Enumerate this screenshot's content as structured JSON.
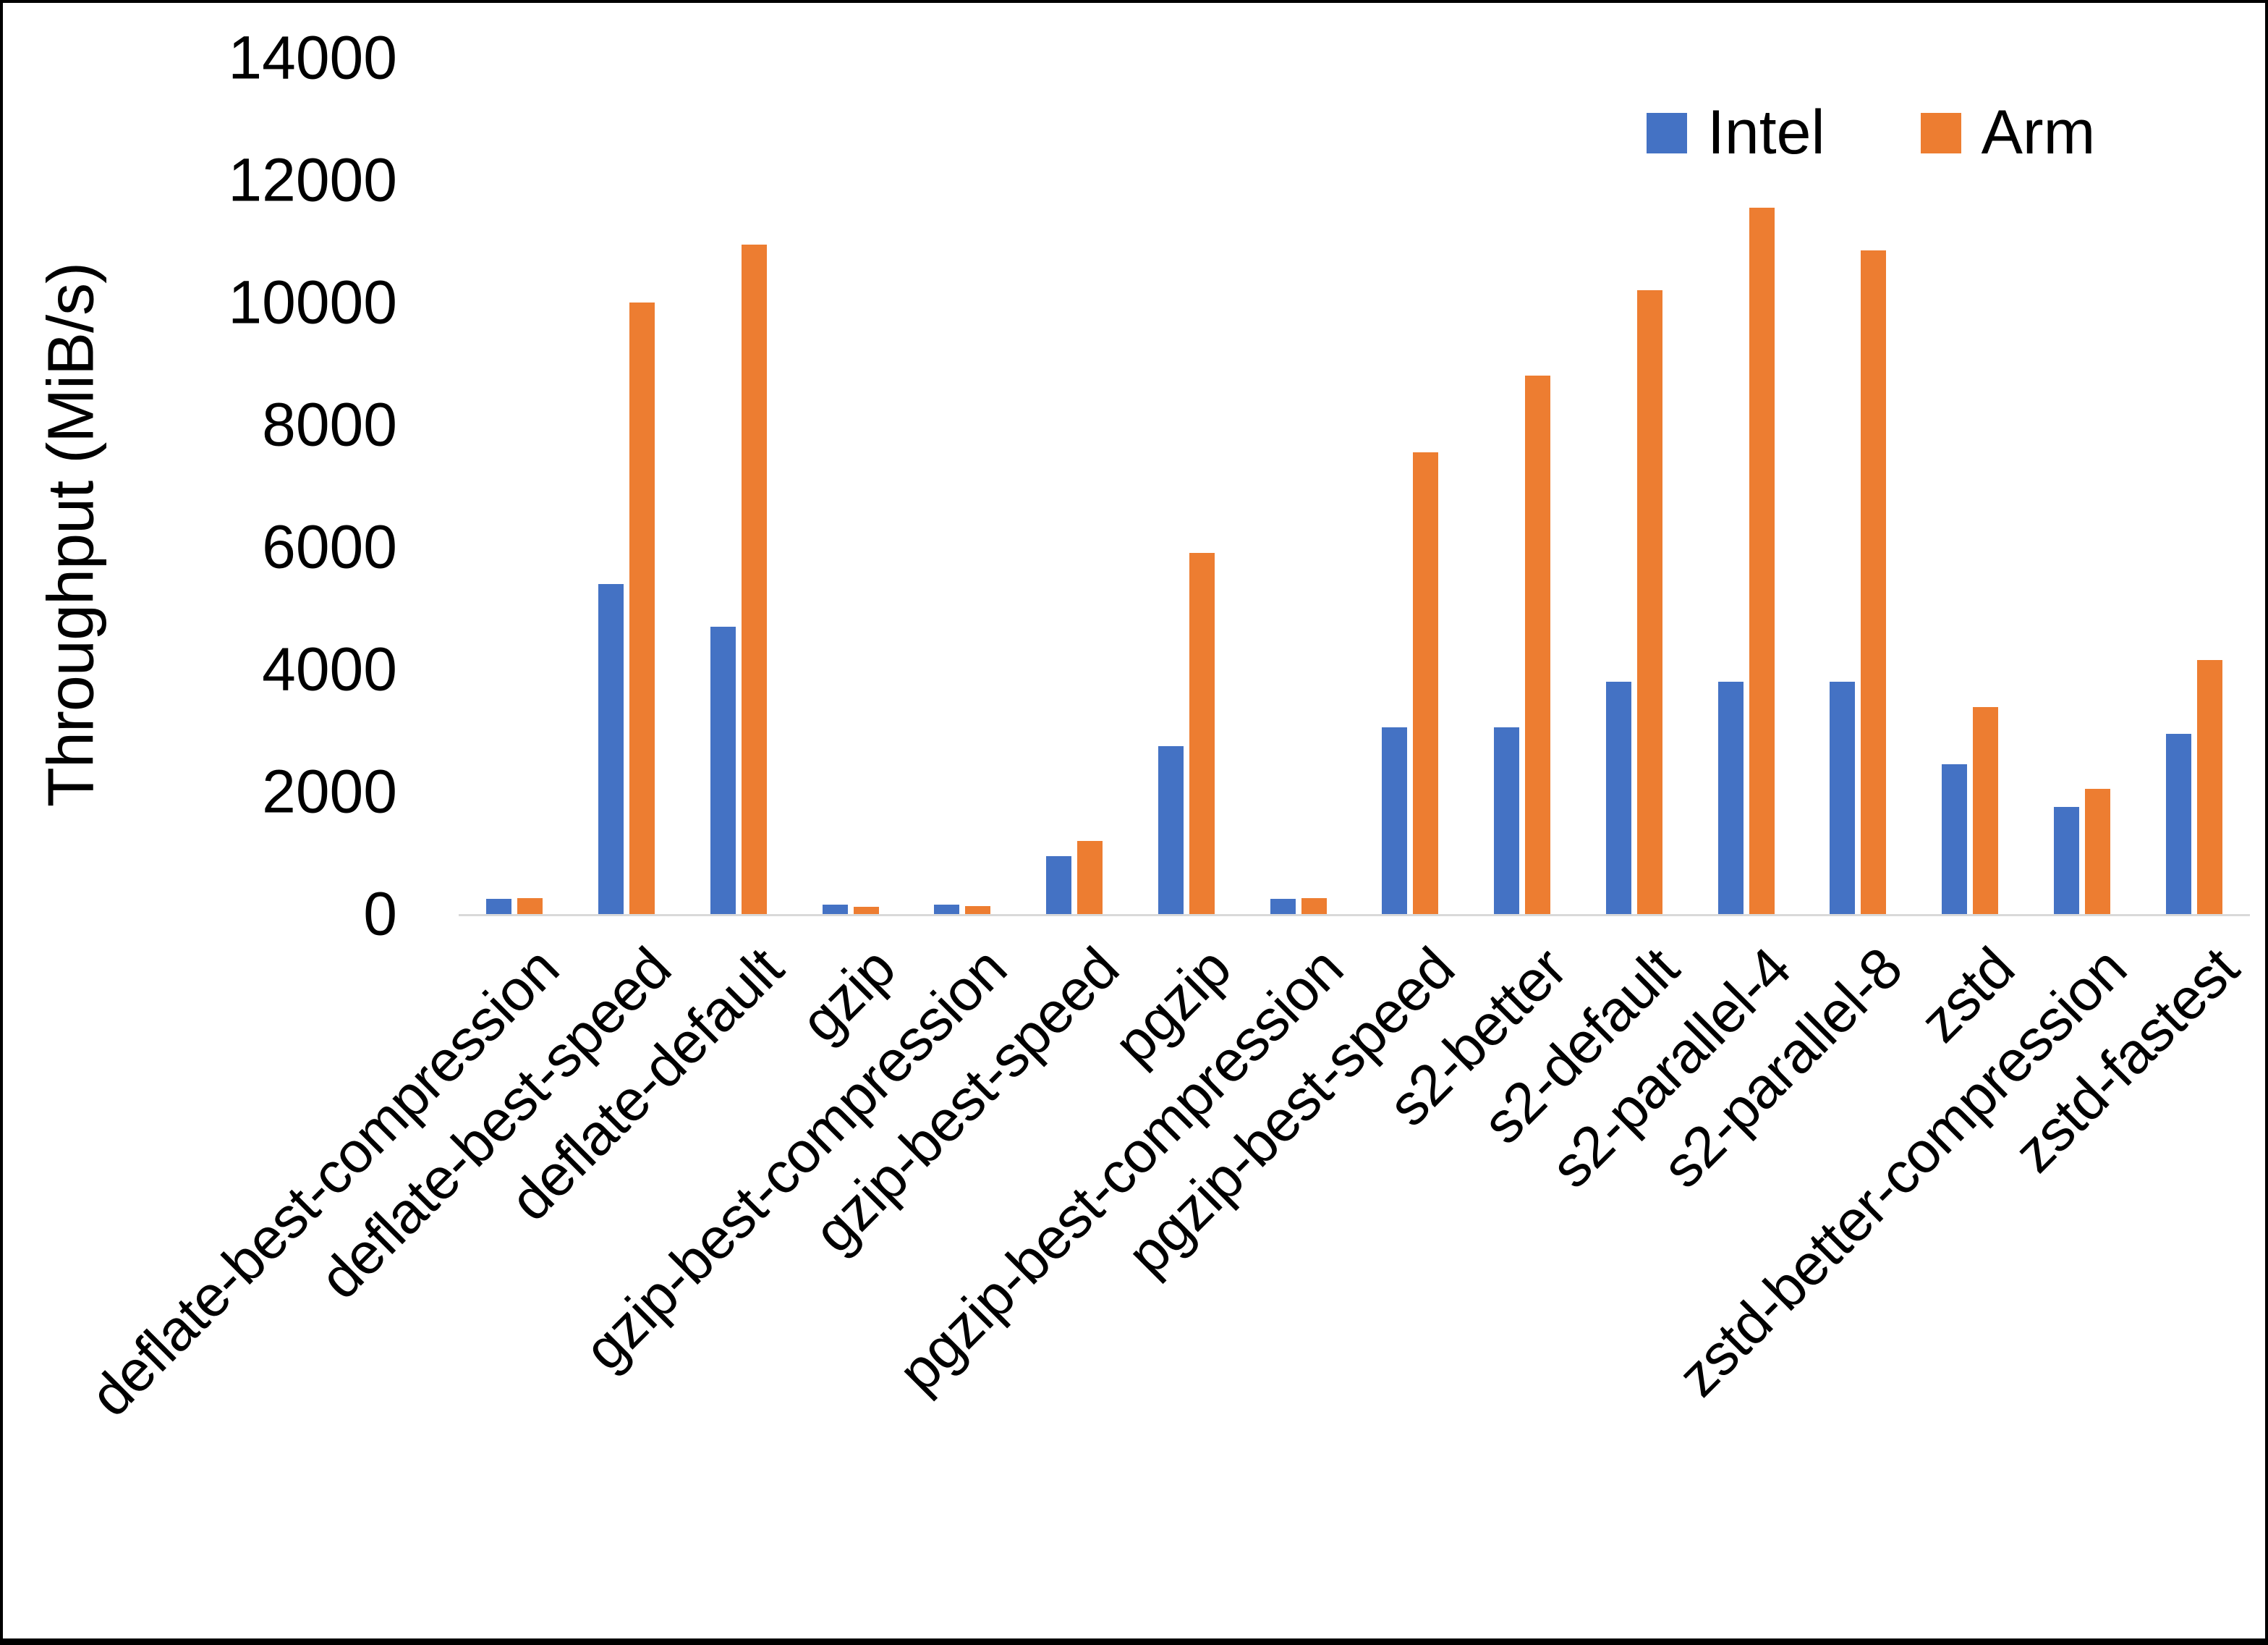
{
  "chart_data": {
    "type": "bar",
    "title": "",
    "xlabel": "",
    "ylabel": "Throughput (MiB/s)",
    "ylim": [
      0,
      14000
    ],
    "y_ticks": [
      0,
      2000,
      4000,
      6000,
      8000,
      10000,
      12000,
      14000
    ],
    "grid": false,
    "legend_position": "top-right",
    "categories": [
      "deflate-best-compression",
      "deflate-best-speed",
      "deflate-default",
      "gzip",
      "gzip-best-compression",
      "gzip-best-speed",
      "pgzip",
      "pgzip-best-compression",
      "pgzip-best-speed",
      "s2-better",
      "s2-default",
      "s2-parallel-4",
      "s2-parallel-8",
      "zstd",
      "zstd-better-compression",
      "zstd-fastest"
    ],
    "series": [
      {
        "name": "Intel",
        "color": "#4472C4",
        "values": [
          250,
          5400,
          4700,
          150,
          150,
          950,
          2750,
          250,
          3050,
          3050,
          3800,
          3800,
          3800,
          2450,
          1750,
          2950
        ]
      },
      {
        "name": "Arm",
        "color": "#ED7D31",
        "values": [
          260,
          10000,
          10950,
          120,
          130,
          1200,
          5900,
          260,
          7550,
          8800,
          10200,
          11550,
          10850,
          3380,
          2050,
          4150
        ]
      }
    ]
  },
  "colors": {
    "background": "#FFFFFF",
    "axis_line": "#D9D9D9",
    "text": "#000000",
    "frame_border": "#000000"
  }
}
